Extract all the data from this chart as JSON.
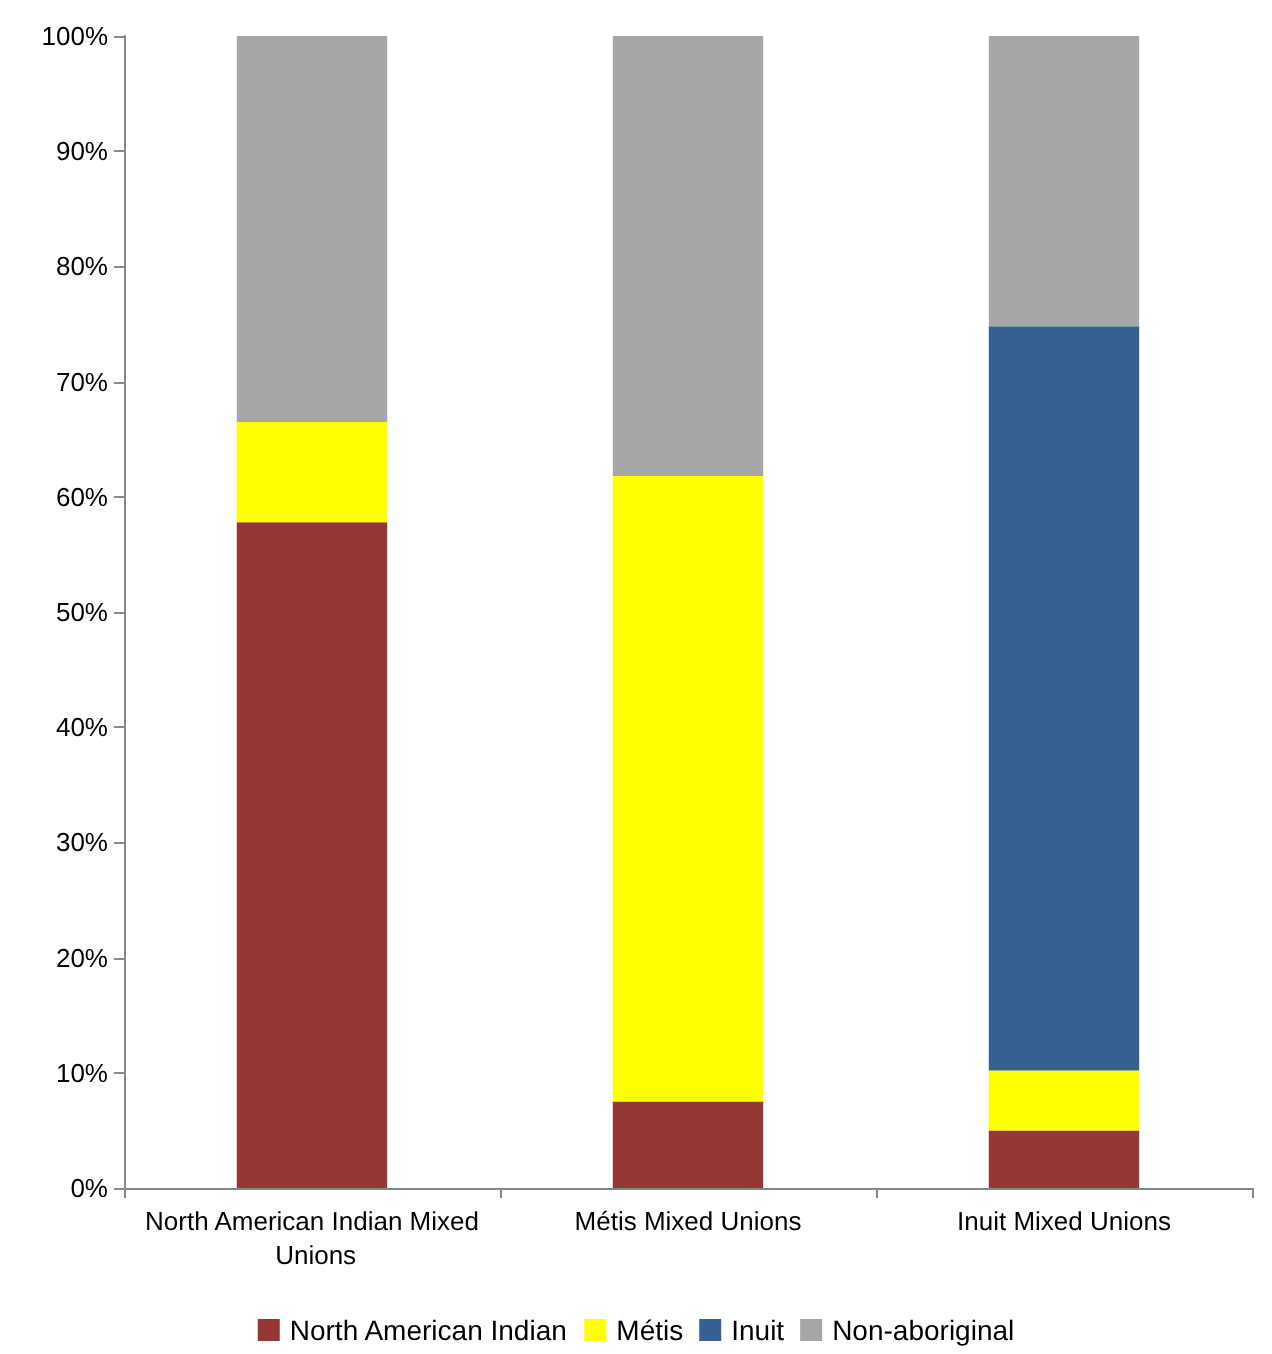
{
  "chart_data": {
    "type": "bar",
    "stacked": true,
    "categories": [
      "North American Indian Mixed Unions",
      "Métis Mixed Unions",
      "Inuit Mixed Unions"
    ],
    "series": [
      {
        "name": "North American Indian",
        "color": "#953735",
        "values": [
          57.8,
          7.5,
          5.0
        ]
      },
      {
        "name": "Métis",
        "color": "#ffff00",
        "values": [
          8.7,
          54.3,
          5.2
        ]
      },
      {
        "name": "Inuit",
        "color": "#376092",
        "values": [
          0,
          0,
          64.6
        ]
      },
      {
        "name": "Non-aboriginal",
        "color": "#a6a6a6",
        "values": [
          33.5,
          38.2,
          25.2
        ]
      }
    ],
    "ylim": [
      0,
      100
    ],
    "yticks": [
      {
        "value": 0,
        "label": "0%"
      },
      {
        "value": 10,
        "label": "10%"
      },
      {
        "value": 20,
        "label": "20%"
      },
      {
        "value": 30,
        "label": "30%"
      },
      {
        "value": 40,
        "label": "40%"
      },
      {
        "value": 50,
        "label": "50%"
      },
      {
        "value": 60,
        "label": "60%"
      },
      {
        "value": 70,
        "label": "70%"
      },
      {
        "value": 80,
        "label": "80%"
      },
      {
        "value": 90,
        "label": "90%"
      },
      {
        "value": 100,
        "label": "100%"
      }
    ],
    "grid": false,
    "legend": "bottom"
  }
}
